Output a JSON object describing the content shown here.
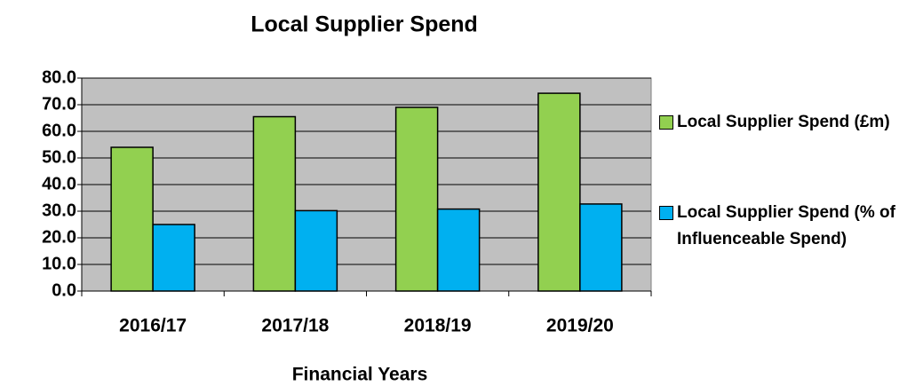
{
  "chart_data": {
    "type": "bar",
    "title": "Local Supplier Spend",
    "x_label": "Financial Years",
    "categories": [
      "2016/17",
      "2017/18",
      "2018/19",
      "2019/20"
    ],
    "series": [
      {
        "name": "Local Supplier Spend (£m)",
        "color": "#92d050",
        "values": [
          54,
          65.5,
          69,
          74.3
        ]
      },
      {
        "name": "Local Supplier Spend (% of Influenceable Spend)",
        "color": "#00b0f0",
        "values": [
          25,
          30.2,
          30.8,
          32.7
        ]
      }
    ],
    "ylim": [
      0,
      80
    ],
    "yticks": [
      {
        "value": 0,
        "label": "0.0"
      },
      {
        "value": 10,
        "label": "10.0"
      },
      {
        "value": 20,
        "label": "20.0"
      },
      {
        "value": 30,
        "label": "30.0"
      },
      {
        "value": 40,
        "label": "40.0"
      },
      {
        "value": 50,
        "label": "50.0"
      },
      {
        "value": 60,
        "label": "60.0"
      },
      {
        "value": 70,
        "label": "70.0"
      },
      {
        "value": 80,
        "label": "80.0"
      }
    ],
    "grid": true,
    "legend": "right",
    "plot_background": "#c0c0c0"
  }
}
